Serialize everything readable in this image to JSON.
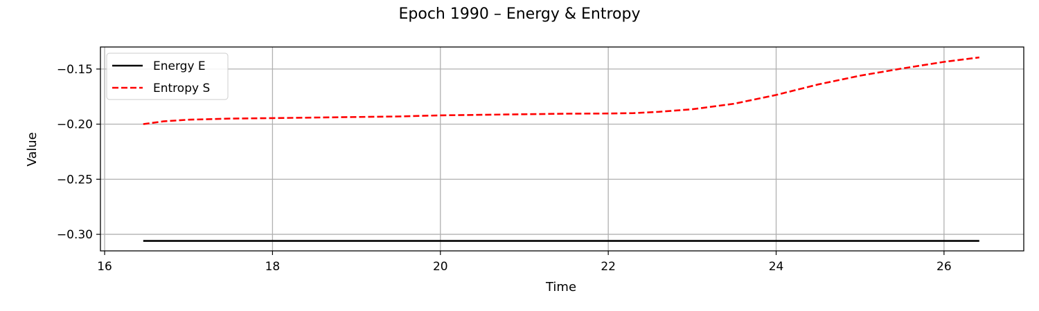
{
  "chart_data": {
    "type": "line",
    "title": "Epoch 1990 – Energy & Entropy",
    "xlabel": "Time",
    "ylabel": "Value",
    "xlim": [
      15.95,
      26.95
    ],
    "ylim": [
      -0.315,
      -0.13
    ],
    "xticks": [
      16,
      18,
      20,
      22,
      24,
      26
    ],
    "xtick_labels": [
      "16",
      "18",
      "20",
      "22",
      "24",
      "26"
    ],
    "yticks": [
      -0.15,
      -0.2,
      -0.25,
      -0.3
    ],
    "ytick_labels": [
      "−0.15",
      "−0.20",
      "−0.25",
      "−0.30"
    ],
    "grid": true,
    "legend_position": "top-left",
    "series": [
      {
        "name": "Energy E",
        "color": "#000000",
        "style": "solid",
        "x": [
          16.46,
          26.42
        ],
        "y": [
          -0.306,
          -0.306
        ]
      },
      {
        "name": "Entropy S",
        "color": "#ff0000",
        "style": "dashed",
        "x": [
          16.46,
          16.7,
          17.0,
          17.5,
          18.0,
          18.5,
          19.0,
          19.5,
          20.0,
          20.5,
          21.0,
          21.5,
          22.0,
          22.3,
          22.6,
          23.0,
          23.5,
          24.0,
          24.5,
          25.0,
          25.5,
          26.0,
          26.42
        ],
        "y": [
          -0.2,
          -0.1975,
          -0.196,
          -0.195,
          -0.1945,
          -0.194,
          -0.1935,
          -0.193,
          -0.192,
          -0.1915,
          -0.191,
          -0.1905,
          -0.1903,
          -0.19,
          -0.1888,
          -0.1865,
          -0.1815,
          -0.1735,
          -0.164,
          -0.156,
          -0.1495,
          -0.1435,
          -0.1395
        ]
      }
    ]
  }
}
